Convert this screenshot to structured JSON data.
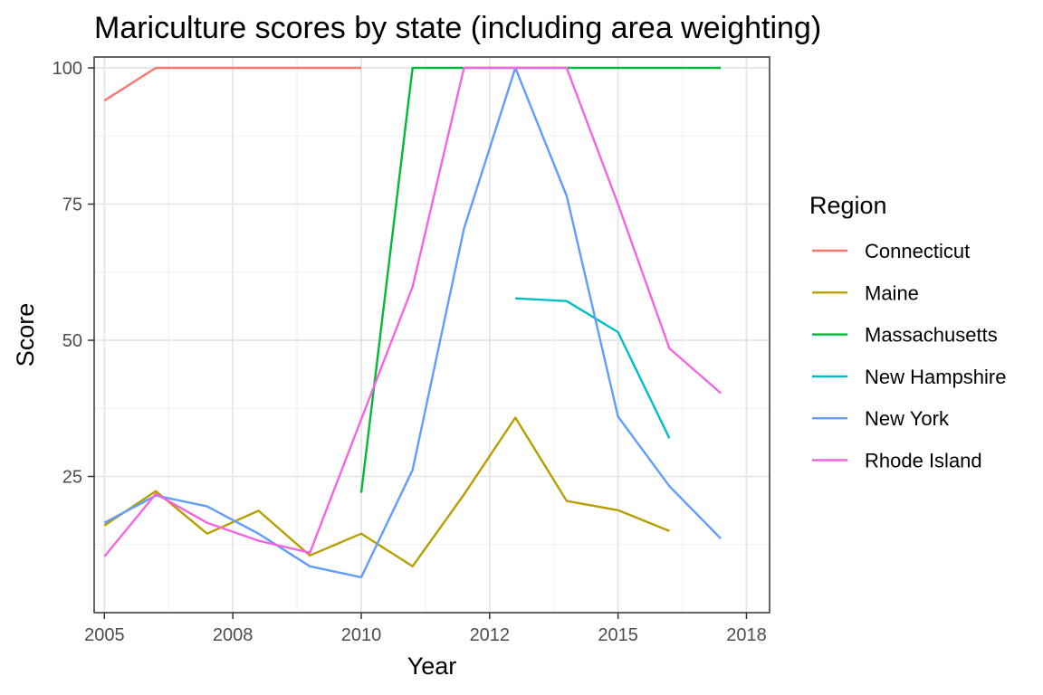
{
  "chart_data": {
    "type": "line",
    "title": "Mariculture scores by state (including area weighting)",
    "xlabel": "Year",
    "ylabel": "Score",
    "xlim": [
      2004.8,
      2017.95
    ],
    "ylim": [
      0,
      102
    ],
    "x_ticks": [
      2005,
      2007.5,
      2010,
      2012.5,
      2015,
      2017.5
    ],
    "x_tick_labels": [
      "2005",
      "2008",
      "2010",
      "2012",
      "2015",
      "2018"
    ],
    "y_ticks": [
      25,
      50,
      75,
      100
    ],
    "y_tick_labels": [
      "25",
      "50",
      "75",
      "100"
    ],
    "grid": true,
    "legend_title": "Region",
    "legend_position": "right",
    "series": [
      {
        "name": "Connecticut",
        "color": "#F8766D",
        "points": [
          [
            2005,
            94
          ],
          [
            2006,
            100
          ],
          [
            2007,
            100
          ],
          [
            2008,
            100
          ],
          [
            2009,
            100
          ],
          [
            2010,
            100
          ]
        ]
      },
      {
        "name": "Maine",
        "color": "#B79F00",
        "points": [
          [
            2005,
            16
          ],
          [
            2006,
            22.3
          ],
          [
            2007,
            14.5
          ],
          [
            2008,
            18.7
          ],
          [
            2009,
            10.5
          ],
          [
            2010,
            14.5
          ],
          [
            2011,
            8.5
          ],
          [
            2012,
            21.7
          ],
          [
            2013,
            35.8
          ],
          [
            2014,
            20.5
          ],
          [
            2015,
            18.8
          ],
          [
            2016,
            15
          ]
        ]
      },
      {
        "name": "Massachusetts",
        "color": "#00BA38",
        "points": [
          [
            2010,
            22
          ],
          [
            2011,
            100
          ],
          [
            2012,
            100
          ],
          [
            2013,
            100
          ],
          [
            2014,
            100
          ],
          [
            2015,
            100
          ],
          [
            2016,
            100
          ],
          [
            2017,
            100
          ]
        ]
      },
      {
        "name": "New Hampshire",
        "color": "#00BFC4",
        "points": [
          [
            2013,
            57.7
          ],
          [
            2014,
            57.2
          ],
          [
            2015,
            51.5
          ],
          [
            2016,
            32
          ]
        ]
      },
      {
        "name": "New York",
        "color": "#619CFF",
        "points": [
          [
            2005,
            16.5
          ],
          [
            2006,
            21.5
          ],
          [
            2007,
            19.5
          ],
          [
            2008,
            14.5
          ],
          [
            2009,
            8.5
          ],
          [
            2010,
            6.5
          ],
          [
            2011,
            26.2
          ],
          [
            2012,
            70.5
          ],
          [
            2013,
            100
          ],
          [
            2014,
            76.5
          ],
          [
            2015,
            36
          ],
          [
            2016,
            23.2
          ],
          [
            2017,
            13.6
          ]
        ]
      },
      {
        "name": "Rhode Island",
        "color": "#F564E3",
        "points": [
          [
            2005,
            10.3
          ],
          [
            2006,
            21.8
          ],
          [
            2007,
            16.5
          ],
          [
            2008,
            13.2
          ],
          [
            2009,
            11
          ],
          [
            2010,
            35.5
          ],
          [
            2011,
            59.8
          ],
          [
            2012,
            100
          ],
          [
            2013,
            100
          ],
          [
            2014,
            100
          ],
          [
            2015,
            75
          ],
          [
            2016,
            48.5
          ],
          [
            2017,
            40.3
          ]
        ]
      }
    ]
  }
}
